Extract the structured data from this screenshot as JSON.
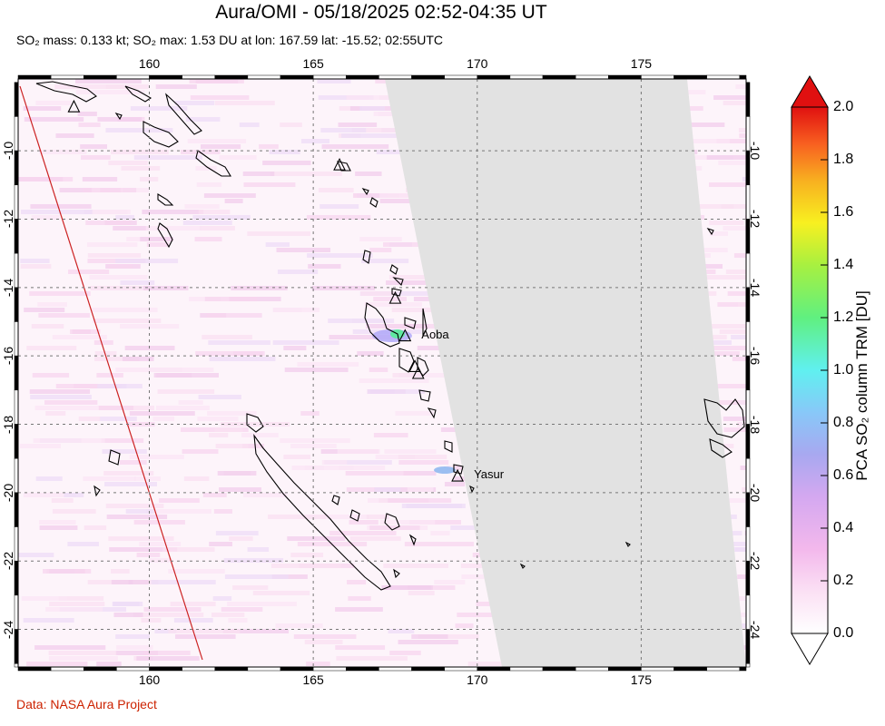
{
  "title": "Aura/OMI - 05/18/2025 02:52-04:35 UT",
  "subtitle": {
    "so2_mass": "SO₂ mass: 0.133 kt",
    "so2_max": "SO₂ max: 1.53 DU at lon: 167.59 lat: -15.52",
    "time": "02:55UTC",
    "separator": "; "
  },
  "map": {
    "lon_ticks": [
      "160",
      "165",
      "170",
      "175"
    ],
    "lat_ticks": [
      "-10",
      "-12",
      "-14",
      "-16",
      "-18",
      "-20",
      "-22",
      "-24"
    ],
    "extent": {
      "lon_min": 156,
      "lon_max": 178.2,
      "lat_min": -25.1,
      "lat_max": -7.9
    },
    "no_data_color": "#e2e2e2",
    "volcanoes": [
      {
        "name": "",
        "lon": 157.7,
        "lat": -8.7
      },
      {
        "name": "",
        "lon": 165.8,
        "lat": -10.4
      },
      {
        "name": "",
        "lon": 167.5,
        "lat": -14.3
      },
      {
        "name": "Aoba",
        "lon": 167.8,
        "lat": -15.4
      },
      {
        "name": "",
        "lon": 168.1,
        "lat": -16.3
      },
      {
        "name": "",
        "lon": 168.2,
        "lat": -16.5
      },
      {
        "name": "Yasur",
        "lon": 169.4,
        "lat": -19.5
      }
    ],
    "so2_hotspot": {
      "lon": 167.59,
      "lat": -15.52,
      "value_du": 1.53
    }
  },
  "colorbar": {
    "label": "PCA SO₂ column TRM [DU]",
    "ticks": [
      "2.0",
      "1.8",
      "1.6",
      "1.4",
      "1.2",
      "1.0",
      "0.8",
      "0.6",
      "0.4",
      "0.2",
      "0.0"
    ],
    "min": 0.0,
    "max": 2.0,
    "colors": [
      "#ffffff",
      "#f9c8ee",
      "#d8a8f0",
      "#a8a0f0",
      "#80c8f8",
      "#60f0e8",
      "#60f080",
      "#c0f040",
      "#f8f020",
      "#f8b020",
      "#f86020",
      "#e02010"
    ]
  },
  "credit": "Data: NASA Aura Project"
}
